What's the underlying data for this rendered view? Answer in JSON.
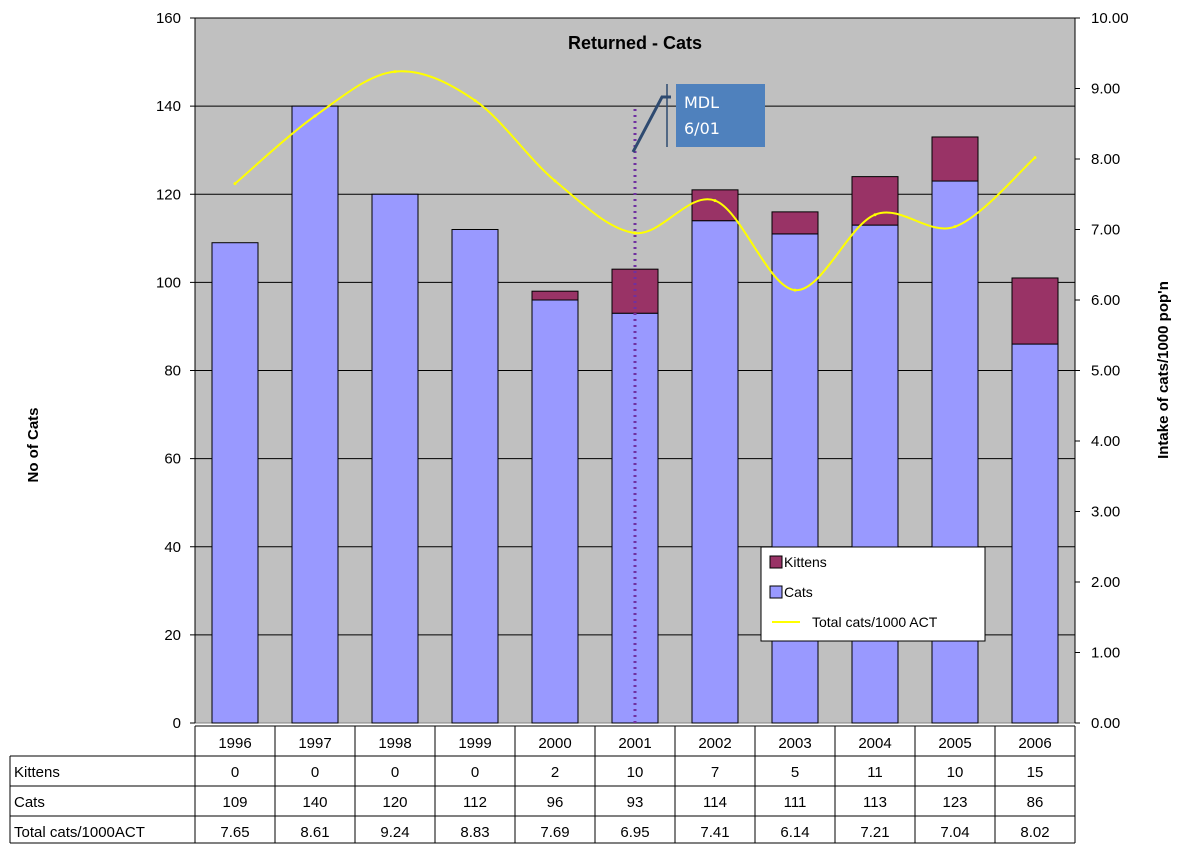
{
  "chart_data": {
    "type": "bar",
    "title": "Returned - Cats",
    "categories": [
      "1996",
      "1997",
      "1998",
      "1999",
      "2000",
      "2001",
      "2002",
      "2003",
      "2004",
      "2005",
      "2006"
    ],
    "series": [
      {
        "name": "Kittens",
        "kind": "stacked-bar",
        "axis": "left",
        "color": "#993366",
        "values": [
          0,
          0,
          0,
          0,
          2,
          10,
          7,
          5,
          11,
          10,
          15
        ]
      },
      {
        "name": "Cats",
        "kind": "stacked-bar",
        "axis": "left",
        "color": "#9999ff",
        "values": [
          109,
          140,
          120,
          112,
          96,
          93,
          114,
          111,
          113,
          123,
          86
        ]
      },
      {
        "name": "Total cats/1000 ACT",
        "kind": "line",
        "axis": "right",
        "color": "#ffff00",
        "values": [
          7.65,
          8.61,
          9.24,
          8.83,
          7.69,
          6.95,
          7.41,
          6.14,
          7.21,
          7.04,
          8.02
        ]
      }
    ],
    "table_labels": {
      "Kittens": "Kittens",
      "Cats": "Cats",
      "Total cats/1000 ACT": "Total cats/1000ACT"
    },
    "table": {
      "Kittens": [
        "0",
        "0",
        "0",
        "0",
        "2",
        "10",
        "7",
        "5",
        "11",
        "10",
        "15"
      ],
      "Cats": [
        "109",
        "140",
        "120",
        "112",
        "96",
        "93",
        "114",
        "111",
        "113",
        "123",
        "86"
      ],
      "Total cats/1000 ACT": [
        "7.65",
        "8.61",
        "9.24",
        "8.83",
        "7.69",
        "6.95",
        "7.41",
        "6.14",
        "7.21",
        "7.04",
        "8.02"
      ]
    },
    "ylabel": "No of Cats",
    "ylabel_right": "Intake of cats/1000 pop'n",
    "ylim": [
      0,
      160
    ],
    "y_ticks": [
      "0",
      "20",
      "40",
      "60",
      "80",
      "100",
      "120",
      "140",
      "160"
    ],
    "ylim_right": [
      0,
      10
    ],
    "y_right_ticks": [
      "0.00",
      "1.00",
      "2.00",
      "3.00",
      "4.00",
      "5.00",
      "6.00",
      "7.00",
      "8.00",
      "9.00",
      "10.00"
    ],
    "grid": true,
    "plot_background": "#c0c0c0",
    "legend_position": "lower-right, inside plot",
    "annotation": {
      "text_line1": "MDL",
      "text_line2": "6/01",
      "category": "2001",
      "line_color": "#7030a0",
      "box_color": "#4f81bd"
    }
  }
}
